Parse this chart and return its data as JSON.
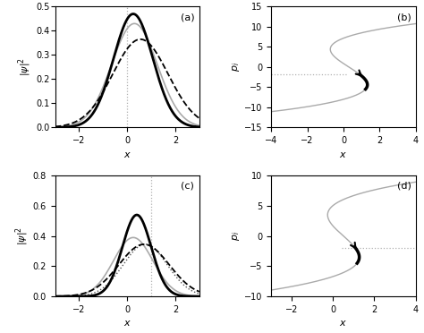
{
  "panel_a": {
    "label": "(a)",
    "xlim": [
      -3,
      3
    ],
    "ylim": [
      0,
      0.5
    ],
    "xlabel": "x",
    "dotted_x": 0.0,
    "gaussian_black": {
      "mu": 0.25,
      "sigma": 0.82,
      "amp": 0.47
    },
    "gaussian_gray": {
      "mu": 0.3,
      "sigma": 0.95,
      "amp": 0.43
    },
    "gaussian_dash": {
      "mu": 0.55,
      "sigma": 1.15,
      "amp": 0.365
    }
  },
  "panel_b": {
    "label": "(b)",
    "xlim": [
      -4,
      4
    ],
    "ylim": [
      -15,
      15
    ],
    "xlabel": "x",
    "ylabel": "p_i",
    "dotted_p": -1.8
  },
  "panel_c": {
    "label": "(c)",
    "xlim": [
      -3,
      3
    ],
    "ylim": [
      0,
      0.8
    ],
    "xlabel": "x",
    "dotted_x": 1.0,
    "gaussian_black": {
      "mu": 0.4,
      "sigma": 0.6,
      "amp": 0.54
    },
    "gaussian_gray": {
      "mu": 0.25,
      "sigma": 0.82,
      "amp": 0.39
    },
    "gaussian_dot": {
      "mu": 0.75,
      "sigma": 0.92,
      "amp": 0.345
    },
    "gaussian_dash": {
      "mu": 0.7,
      "sigma": 1.05,
      "amp": 0.345
    }
  },
  "panel_d": {
    "label": "(d)",
    "xlim": [
      -3,
      4
    ],
    "ylim": [
      -10,
      10
    ],
    "xlabel": "x",
    "ylabel": "p_i",
    "dotted_p": -2.0
  },
  "colors": {
    "black": "#000000",
    "gray": "#aaaaaa",
    "dotted_color": "#b0b0b0"
  }
}
